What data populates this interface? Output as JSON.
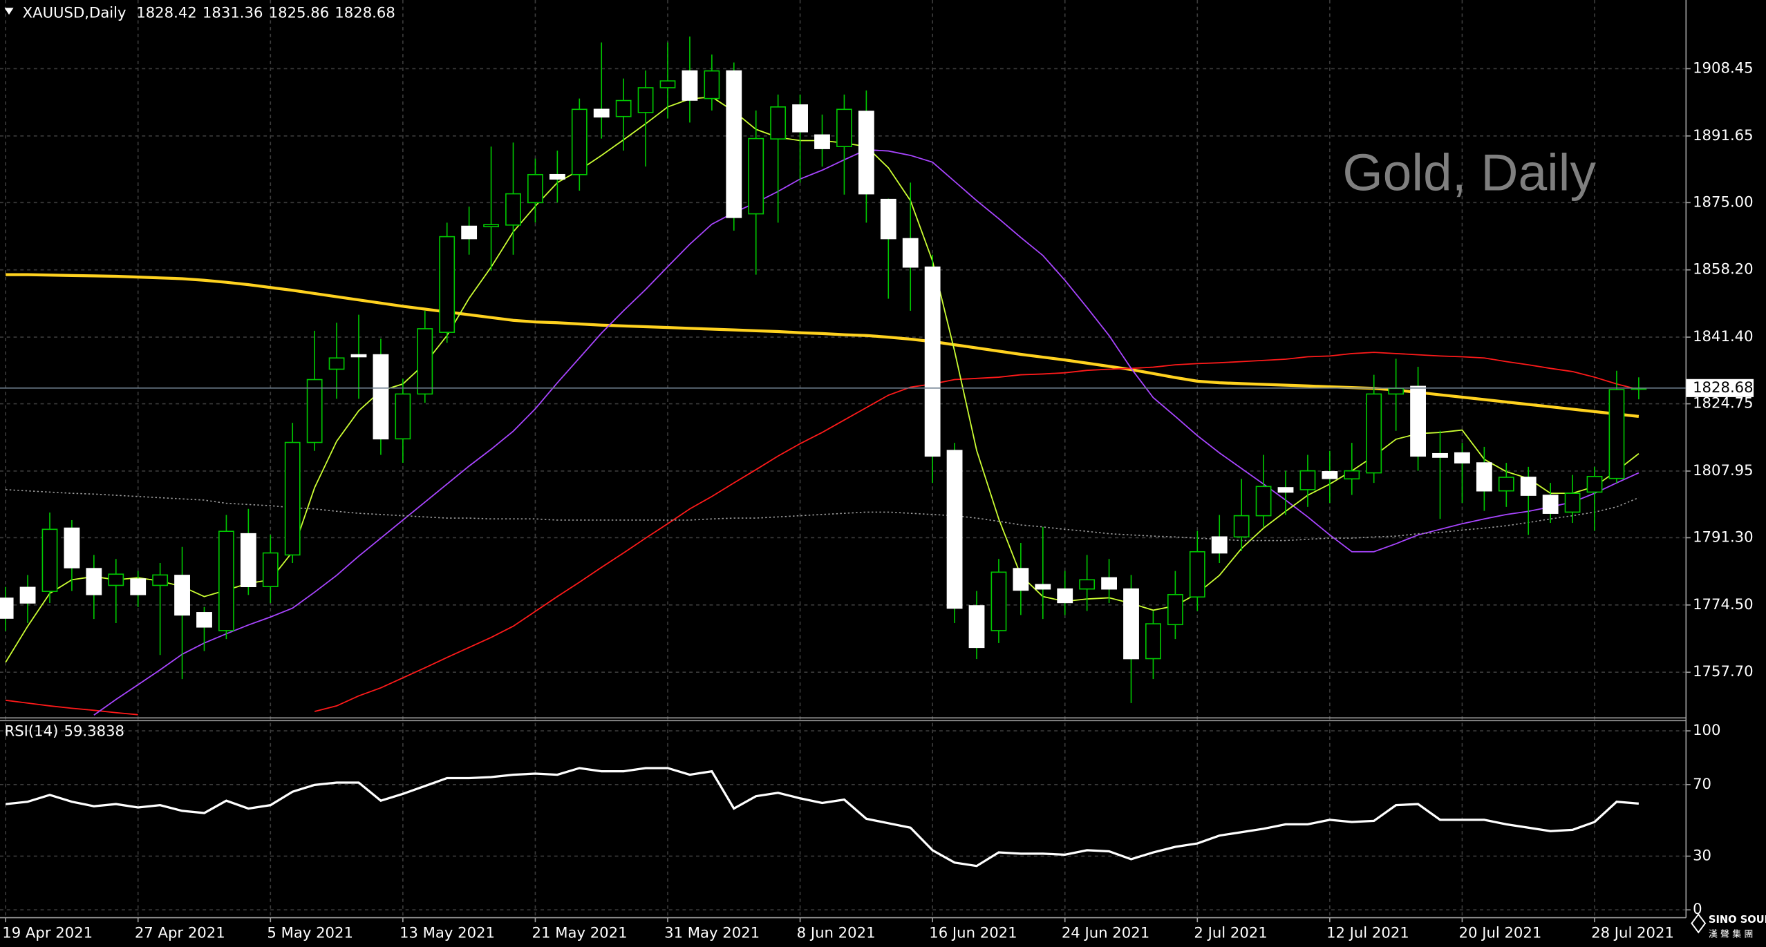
{
  "chart_data": [
    {
      "type": "candlestick",
      "title": "XAUUSD,Daily",
      "watermark": "Gold, Daily",
      "categories": [
        "19 Apr 2021",
        null,
        null,
        null,
        null,
        null,
        "27 Apr 2021",
        null,
        null,
        null,
        null,
        null,
        "5 May 2021",
        null,
        null,
        null,
        null,
        null,
        "13 May 2021",
        null,
        null,
        null,
        null,
        null,
        "21 May 2021",
        null,
        null,
        null,
        null,
        null,
        "31 May 2021",
        null,
        null,
        null,
        null,
        null,
        "8 Jun 2021",
        null,
        null,
        null,
        null,
        null,
        "16 Jun 2021",
        null,
        null,
        null,
        null,
        null,
        "24 Jun 2021",
        null,
        null,
        null,
        null,
        null,
        "2 Jul 2021",
        null,
        null,
        null,
        null,
        null,
        "12 Jul 2021",
        null,
        null,
        null,
        null,
        null,
        "20 Jul 2021",
        null,
        null,
        null,
        null,
        null,
        "28 Jul 2021",
        null,
        null
      ],
      "open": [
        1776.2,
        1778.9,
        1777.9,
        1793.7,
        1783.6,
        1779.4,
        1781.0,
        1779.4,
        1781.9,
        1772.6,
        1768.1,
        1792.3,
        1779.1,
        1787.0,
        1815.1,
        1833.4,
        1837.0,
        1837.0,
        1816.0,
        1827.2,
        1842.6,
        1869.1,
        1869.0,
        1869.4,
        1875.0,
        1882.0,
        1882.0,
        1898.3,
        1896.5,
        1897.5,
        1903.7,
        1907.9,
        1901.0,
        1907.9,
        1872.2,
        1890.9,
        1899.4,
        1891.9,
        1889.0,
        1897.8,
        1875.8,
        1866.0,
        1858.9,
        1813.1,
        1774.3,
        1768.1,
        1783.6,
        1779.6,
        1778.5,
        1778.5,
        1781.3,
        1778.5,
        1761.1,
        1769.6,
        1776.5,
        1791.5,
        1791.5,
        1796.8,
        1803.8,
        1803.3,
        1807.8,
        1806.0,
        1807.5,
        1827.2,
        1829.1,
        1812.3,
        1812.5,
        1810.0,
        1803.0,
        1806.4,
        1801.9,
        1797.7,
        1802.7,
        1806.1,
        1828.42
      ],
      "high": [
        1779,
        1782,
        1797.6,
        1795.7,
        1787,
        1786,
        1783,
        1785,
        1789,
        1774,
        1797,
        1798.5,
        1792,
        1820,
        1843,
        1845,
        1847,
        1841,
        1831,
        1848,
        1870,
        1874,
        1889,
        1890,
        1886,
        1888,
        1901,
        1915,
        1906,
        1908,
        1915,
        1916.5,
        1912,
        1910,
        1898,
        1902,
        1902,
        1897,
        1902,
        1903,
        1876,
        1880,
        1862,
        1815,
        1778,
        1786,
        1790,
        1794,
        1783,
        1787,
        1786,
        1782,
        1773,
        1783,
        1793,
        1797,
        1806,
        1812,
        1808,
        1812,
        1813,
        1815,
        1832,
        1836,
        1834,
        1818,
        1815,
        1814,
        1810,
        1809,
        1805,
        1807,
        1809,
        1833,
        1831.36
      ],
      "low": [
        1768,
        1770,
        1775,
        1778,
        1771,
        1770,
        1774,
        1762,
        1756,
        1763,
        1766,
        1777,
        1775,
        1785,
        1813,
        1826,
        1826,
        1812,
        1810,
        1825,
        1840,
        1862,
        1858,
        1862,
        1870,
        1875,
        1878,
        1891,
        1888,
        1884,
        1896,
        1895,
        1898,
        1868,
        1857,
        1870,
        1880,
        1884,
        1877,
        1870,
        1851,
        1848,
        1805,
        1770,
        1761,
        1765,
        1772,
        1771,
        1772,
        1773,
        1775,
        1750,
        1756,
        1766,
        1773,
        1785,
        1788,
        1794,
        1797,
        1799,
        1800,
        1802,
        1805,
        1818,
        1808,
        1796,
        1800,
        1798,
        1799,
        1792,
        1795,
        1795,
        1793,
        1805,
        1825.86
      ],
      "close": [
        1771.2,
        1775.0,
        1793.4,
        1783.8,
        1777.1,
        1782.2,
        1777.1,
        1782.0,
        1772.0,
        1769.0,
        1792.9,
        1779.1,
        1787.5,
        1815.1,
        1830.8,
        1836.2,
        1836.5,
        1816.0,
        1827.2,
        1843.5,
        1866.5,
        1866.0,
        1869.5,
        1877.2,
        1882.0,
        1880.9,
        1898.3,
        1896.4,
        1900.5,
        1903.7,
        1905.4,
        1900.6,
        1907.9,
        1871.3,
        1891.0,
        1898.9,
        1892.7,
        1888.5,
        1898.3,
        1877.2,
        1866.0,
        1858.9,
        1811.7,
        1773.7,
        1763.9,
        1782.7,
        1778.2,
        1778.5,
        1775.1,
        1780.8,
        1778.5,
        1761.1,
        1769.8,
        1777.1,
        1787.8,
        1787.5,
        1796.8,
        1804.1,
        1802.7,
        1808.0,
        1806.1,
        1808.0,
        1827.2,
        1828.6,
        1811.7,
        1811.4,
        1810.0,
        1803.0,
        1806.4,
        1801.9,
        1797.4,
        1802.4,
        1806.6,
        1828.3,
        1828.68
      ],
      "colors": {
        "up": "#00c800",
        "down": "#ffffff"
      },
      "lines": [
        {
          "color": "#ffd21f",
          "style": "thick",
          "values": [
            1857.0,
            1857.0,
            1856.9,
            1856.8,
            1856.7,
            1856.6,
            1856.4,
            1856.2,
            1856.0,
            1855.6,
            1855.1,
            1854.5,
            1853.8,
            1853.1,
            1852.3,
            1851.5,
            1850.7,
            1849.9,
            1849.1,
            1848.4,
            1847.7,
            1847.0,
            1846.3,
            1845.6,
            1845.2,
            1845.0,
            1844.7,
            1844.4,
            1844.2,
            1844.0,
            1843.8,
            1843.6,
            1843.4,
            1843.2,
            1843.0,
            1842.8,
            1842.5,
            1842.3,
            1842.0,
            1841.8,
            1841.4,
            1840.9,
            1840.3,
            1839.5,
            1838.7,
            1837.9,
            1837.1,
            1836.4,
            1835.7,
            1834.9,
            1834.1,
            1833.3,
            1832.3,
            1831.3,
            1830.4,
            1830.0,
            1829.8,
            1829.6,
            1829.4,
            1829.2,
            1829.0,
            1828.8,
            1828.6,
            1828.2,
            1827.6,
            1827.0,
            1826.4,
            1825.8,
            1825.2,
            1824.6,
            1824.0,
            1823.4,
            1822.8,
            1822.2,
            1821.6
          ]
        },
        {
          "color": "#ff1a1a",
          "style": "thin",
          "values": [
            1750.7,
            1750.0,
            1749.3,
            1748.7,
            1748.2,
            1747.6,
            1747.1,
            null,
            null,
            null,
            null,
            null,
            null,
            null,
            1747.9,
            1749.3,
            1751.8,
            1753.8,
            1756.3,
            1758.8,
            1761.4,
            1763.9,
            1766.4,
            1769.2,
            1772.9,
            1776.6,
            1780.2,
            1783.9,
            1787.5,
            1791.2,
            1794.8,
            1798.5,
            1801.6,
            1805.0,
            1808.3,
            1811.7,
            1814.8,
            1817.6,
            1820.7,
            1823.8,
            1826.9,
            1828.9,
            1829.7,
            1830.8,
            1831.1,
            1831.4,
            1832.0,
            1832.2,
            1832.5,
            1833.1,
            1833.4,
            1833.6,
            1833.9,
            1834.5,
            1834.8,
            1835.0,
            1835.3,
            1835.6,
            1835.9,
            1836.5,
            1836.7,
            1837.3,
            1837.6,
            1837.3,
            1837.0,
            1836.7,
            1836.5,
            1836.2,
            1835.3,
            1834.5,
            1833.6,
            1832.8,
            1831.4,
            1829.7,
            1828.3
          ]
        },
        {
          "color": "#a845ff",
          "style": "thin",
          "values": [
            null,
            null,
            null,
            null,
            1747.0,
            1750.9,
            1754.6,
            1758.3,
            1762.2,
            1765.0,
            1767.3,
            1769.5,
            1771.5,
            1773.7,
            1777.7,
            1781.9,
            1786.7,
            1791.2,
            1795.7,
            1800.2,
            1804.7,
            1809.2,
            1813.4,
            1817.9,
            1823.5,
            1830.0,
            1836.2,
            1842.4,
            1848.0,
            1853.3,
            1859.0,
            1864.6,
            1869.6,
            1872.5,
            1875.0,
            1877.8,
            1880.9,
            1883.1,
            1885.7,
            1888.2,
            1887.9,
            1886.8,
            1885.1,
            1880.3,
            1875.5,
            1871.0,
            1866.3,
            1861.8,
            1855.6,
            1848.8,
            1841.8,
            1833.6,
            1826.3,
            1821.6,
            1816.8,
            1812.5,
            1808.6,
            1804.7,
            1800.7,
            1796.5,
            1792.0,
            1787.8,
            1787.8,
            1789.8,
            1792.0,
            1793.4,
            1794.8,
            1796.0,
            1797.1,
            1797.9,
            1799.0,
            1800.2,
            1802.4,
            1805.0,
            1807.5
          ]
        },
        {
          "color": "#ccff33",
          "style": "thin",
          "values": [
            1760.2,
            1769.2,
            1777.4,
            1780.8,
            1781.6,
            1780.8,
            1781.3,
            1780.5,
            1779.1,
            1776.6,
            1778.2,
            1779.9,
            1780.8,
            1787.8,
            1803.8,
            1815.4,
            1823.0,
            1828.0,
            1829.7,
            1834.8,
            1841.8,
            1851.1,
            1858.9,
            1867.7,
            1874.1,
            1880.0,
            1883.1,
            1886.8,
            1890.7,
            1894.7,
            1898.9,
            1900.9,
            1901.4,
            1897.8,
            1893.3,
            1891.3,
            1890.5,
            1890.5,
            1889.9,
            1889.0,
            1883.7,
            1875.5,
            1860.4,
            1837.9,
            1813.1,
            1796.0,
            1781.9,
            1776.6,
            1775.4,
            1776.0,
            1776.3,
            1774.9,
            1773.2,
            1774.3,
            1777.4,
            1781.9,
            1788.6,
            1793.7,
            1797.9,
            1801.9,
            1804.7,
            1808.0,
            1811.7,
            1815.9,
            1817.3,
            1817.6,
            1818.2,
            1810.9,
            1807.8,
            1806.1,
            1802.4,
            1802.4,
            1804.1,
            1808.0,
            1812.3
          ]
        },
        {
          "color": "#9a9a9a",
          "style": "dotted",
          "values": [
            1803.3,
            1803.0,
            1802.7,
            1802.4,
            1802.2,
            1801.9,
            1801.6,
            1801.3,
            1801.0,
            1800.7,
            1799.9,
            1799.6,
            1799.3,
            1798.8,
            1798.5,
            1797.9,
            1797.4,
            1797.1,
            1796.8,
            1796.5,
            1796.2,
            1796.2,
            1796.0,
            1796.0,
            1796.0,
            1795.7,
            1795.7,
            1795.7,
            1795.7,
            1795.7,
            1795.7,
            1795.7,
            1796.0,
            1796.2,
            1796.2,
            1796.5,
            1796.8,
            1797.1,
            1797.4,
            1797.7,
            1797.7,
            1797.4,
            1797.1,
            1796.8,
            1796.2,
            1795.4,
            1794.5,
            1794.0,
            1793.4,
            1792.9,
            1792.3,
            1792.0,
            1791.7,
            1791.5,
            1791.2,
            1790.9,
            1790.6,
            1790.6,
            1790.6,
            1790.9,
            1791.2,
            1791.2,
            1791.5,
            1791.7,
            1792.3,
            1792.6,
            1793.2,
            1793.7,
            1794.3,
            1795.1,
            1796.0,
            1796.8,
            1797.7,
            1799.0,
            1801.3
          ]
        }
      ],
      "ylim": [
        1746.45,
        1925.61
      ],
      "yticks": [
        {
          "value": 1908.45,
          "label": "1908.45"
        },
        {
          "value": 1891.65,
          "label": "1891.65"
        },
        {
          "value": 1875,
          "label": "1875.00"
        },
        {
          "value": 1858.2,
          "label": "1858.20"
        },
        {
          "value": 1841.4,
          "label": "1841.40"
        },
        {
          "value": 1824.75,
          "label": "1824.75"
        },
        {
          "value": 1807.95,
          "label": "1807.95"
        },
        {
          "value": 1791.3,
          "label": "1791.30"
        },
        {
          "value": 1774.5,
          "label": "1774.50"
        },
        {
          "value": 1757.7,
          "label": "1757.70"
        }
      ],
      "grid": true
    },
    {
      "type": "line",
      "title": "RSI(14)",
      "color": "#ffffff",
      "values": [
        59.1,
        60.4,
        64.2,
        60.4,
        57.9,
        59.1,
        57.2,
        58.5,
        55.3,
        54.1,
        61.0,
        56.6,
        58.5,
        66.0,
        69.8,
        71.1,
        71.1,
        61.0,
        64.8,
        69.2,
        73.6,
        73.6,
        74.2,
        75.5,
        76.1,
        75.5,
        79.2,
        77.4,
        77.4,
        79.2,
        79.2,
        75.5,
        77.4,
        56.6,
        63.5,
        65.4,
        62.3,
        59.7,
        61.6,
        50.9,
        48.4,
        45.9,
        33.3,
        26.4,
        24.5,
        32.1,
        31.4,
        31.4,
        30.8,
        33.3,
        32.7,
        28.3,
        32.1,
        35.2,
        37.1,
        41.5,
        43.4,
        45.3,
        47.8,
        47.8,
        50.3,
        49.1,
        49.7,
        58.5,
        59.1,
        50.3,
        50.3,
        50.3,
        47.8,
        45.9,
        44.0,
        44.7,
        49.1,
        60.4,
        59.3838
      ],
      "ylim": [
        -4.4,
        105.7
      ],
      "yticks": [
        100,
        70,
        30,
        0
      ],
      "grid": true
    }
  ],
  "logo": {
    "name": "SINO SOUND",
    "subtitle": "漢 聲 集 團"
  }
}
